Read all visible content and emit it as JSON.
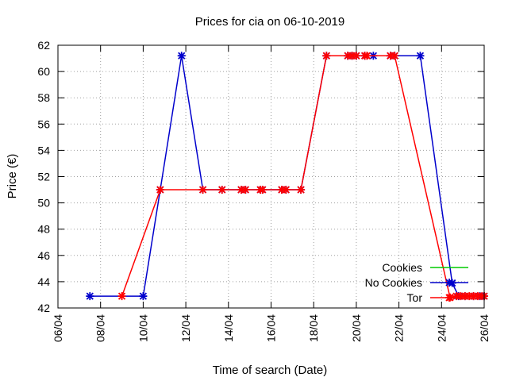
{
  "chart_data": {
    "type": "line",
    "title": "Prices for cia on 06-10-2019",
    "xlabel": "Time of search (Date)",
    "ylabel": "Price (€)",
    "xlim": [
      0,
      20
    ],
    "ylim": [
      42,
      62
    ],
    "x_ticks": [
      {
        "x": 0,
        "label": "06/04"
      },
      {
        "x": 2,
        "label": "08/04"
      },
      {
        "x": 4,
        "label": "10/04"
      },
      {
        "x": 6,
        "label": "12/04"
      },
      {
        "x": 8,
        "label": "14/04"
      },
      {
        "x": 10,
        "label": "16/04"
      },
      {
        "x": 12,
        "label": "18/04"
      },
      {
        "x": 14,
        "label": "20/04"
      },
      {
        "x": 16,
        "label": "22/04"
      },
      {
        "x": 18,
        "label": "24/04"
      },
      {
        "x": 20,
        "label": "26/04"
      }
    ],
    "y_ticks": [
      42,
      44,
      46,
      48,
      50,
      52,
      54,
      56,
      58,
      60,
      62
    ],
    "grid": true,
    "legend_position": "bottom-right",
    "series": [
      {
        "name": "Cookies",
        "color": "#00cc00",
        "x": [],
        "y": []
      },
      {
        "name": "No Cookies",
        "color": "#0000cc",
        "x": [
          1.5,
          4.0,
          4.8,
          5.8,
          6.8,
          7.7,
          8.6,
          8.8,
          9.5,
          9.6,
          10.5,
          10.7,
          11.4,
          12.6,
          13.6,
          13.8,
          14.0,
          14.4,
          14.8,
          15.6,
          15.8,
          17.0,
          18.5,
          18.8,
          19.1,
          19.5,
          19.8,
          20.0
        ],
        "y": [
          42.9,
          42.9,
          51.0,
          61.2,
          51.0,
          51.0,
          51.0,
          51.0,
          51.0,
          51.0,
          51.0,
          51.0,
          51.0,
          61.2,
          61.2,
          61.2,
          61.2,
          61.2,
          61.2,
          61.2,
          61.2,
          61.2,
          43.9,
          42.9,
          42.9,
          42.9,
          42.9,
          42.9
        ]
      },
      {
        "name": "Tor",
        "color": "#ff0000",
        "x": [
          3.0,
          4.8,
          6.8,
          7.7,
          8.6,
          8.8,
          9.5,
          9.6,
          10.5,
          10.7,
          11.4,
          12.6,
          13.6,
          13.8,
          14.0,
          14.4,
          14.5,
          15.6,
          15.8,
          18.4,
          18.7,
          18.9,
          19.1,
          19.3,
          19.5,
          19.7,
          19.9,
          20.0
        ],
        "y": [
          42.9,
          51.0,
          51.0,
          51.0,
          51.0,
          51.0,
          51.0,
          51.0,
          51.0,
          51.0,
          51.0,
          61.2,
          61.2,
          61.2,
          61.2,
          61.2,
          61.2,
          61.2,
          61.2,
          42.8,
          42.9,
          42.9,
          42.9,
          42.9,
          42.9,
          42.9,
          42.9,
          42.9
        ]
      }
    ]
  }
}
